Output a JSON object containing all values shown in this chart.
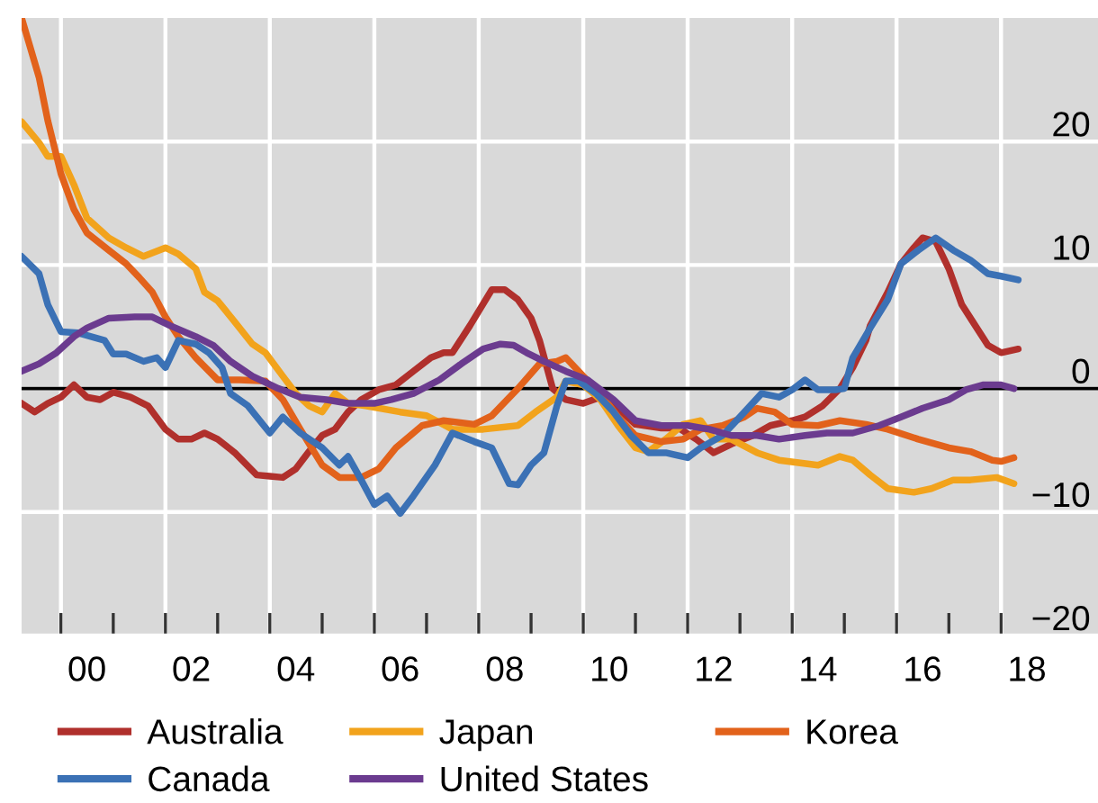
{
  "chart_data": {
    "type": "line",
    "xlim": [
      "1999-04",
      "2019-11-10"
    ],
    "ylim": [
      -20,
      30
    ],
    "xticks": [
      {
        "value": "2000-01",
        "label": null
      },
      {
        "value": "2000-07",
        "label": "00"
      },
      {
        "value": "2001-01",
        "label": null
      },
      {
        "value": "2002-01",
        "label": null
      },
      {
        "value": "2002-07",
        "label": "02"
      },
      {
        "value": "2003-01",
        "label": null
      },
      {
        "value": "2004-01",
        "label": null
      },
      {
        "value": "2004-07",
        "label": "04"
      },
      {
        "value": "2005-01",
        "label": null
      },
      {
        "value": "2006-01",
        "label": null
      },
      {
        "value": "2006-07",
        "label": "06"
      },
      {
        "value": "2007-01",
        "label": null
      },
      {
        "value": "2008-01",
        "label": null
      },
      {
        "value": "2008-07",
        "label": "08"
      },
      {
        "value": "2009-01",
        "label": null
      },
      {
        "value": "2010-01",
        "label": null
      },
      {
        "value": "2010-07",
        "label": "10"
      },
      {
        "value": "2011-01",
        "label": null
      },
      {
        "value": "2012-01",
        "label": null
      },
      {
        "value": "2012-07",
        "label": "12"
      },
      {
        "value": "2013-01",
        "label": null
      },
      {
        "value": "2014-01",
        "label": null
      },
      {
        "value": "2014-07",
        "label": "14"
      },
      {
        "value": "2015-01",
        "label": null
      },
      {
        "value": "2016-01",
        "label": null
      },
      {
        "value": "2016-07",
        "label": "16"
      },
      {
        "value": "2017-01",
        "label": null
      },
      {
        "value": "2018-01",
        "label": null
      },
      {
        "value": "2018-07",
        "label": "18"
      }
    ],
    "yticks": [
      -20,
      -10,
      0,
      10,
      20
    ],
    "grid": true,
    "legend": "bottom",
    "ref_lines": [
      {
        "axis": "y",
        "value": 0,
        "color": "#000000"
      }
    ],
    "series": [
      {
        "name": "Australia",
        "color": "#b0302c",
        "x": [
          "1999-04",
          "1999-07",
          "1999-10",
          "2000-01",
          "2000-04",
          "2000-07",
          "2000-10",
          "2001-01",
          "2001-05",
          "2001-09",
          "2002-01",
          "2002-04",
          "2002-07",
          "2002-10",
          "2003-01",
          "2003-05",
          "2003-10",
          "2004-01",
          "2004-04",
          "2004-07",
          "2004-10",
          "2005-01",
          "2005-04",
          "2005-07",
          "2005-10",
          "2006-02",
          "2006-06",
          "2006-10",
          "2007-02",
          "2007-05",
          "2007-07",
          "2007-11",
          "2008-04",
          "2008-07",
          "2008-10",
          "2009-01",
          "2009-03",
          "2009-06",
          "2009-09",
          "2010-01",
          "2010-05",
          "2010-09",
          "2011-01",
          "2011-07",
          "2011-11",
          "2012-03",
          "2012-07",
          "2012-11",
          "2013-04",
          "2013-08",
          "2014-01",
          "2014-04",
          "2014-08",
          "2014-12",
          "2015-03",
          "2015-06",
          "2015-07",
          "2015-11",
          "2016-02",
          "2016-05",
          "2016-07",
          "2016-10",
          "2017-01",
          "2017-04",
          "2017-06",
          "2017-10",
          "2018-01",
          "2018-05"
        ],
        "values": [
          -1.2,
          -1.9,
          -1.2,
          -0.7,
          0.3,
          -0.7,
          -0.9,
          -0.3,
          -0.7,
          -1.4,
          -3.3,
          -4.1,
          -4.1,
          -3.6,
          -4.1,
          -5.2,
          -7.0,
          -7.1,
          -7.2,
          -6.5,
          -5.1,
          -3.8,
          -3.3,
          -1.9,
          -0.9,
          -0.1,
          0.3,
          1.4,
          2.5,
          2.9,
          2.9,
          5.1,
          8.0,
          8.0,
          7.2,
          5.7,
          3.9,
          0.0,
          -0.9,
          -1.2,
          -0.7,
          -1.6,
          -2.9,
          -3.2,
          -3.2,
          -4.1,
          -5.2,
          -4.5,
          -3.8,
          -3.0,
          -2.6,
          -2.3,
          -1.4,
          0.0,
          1.7,
          3.9,
          5.1,
          7.8,
          10.1,
          11.4,
          12.2,
          11.9,
          9.7,
          6.8,
          5.7,
          3.5,
          2.9,
          3.2
        ]
      },
      {
        "name": "Japan",
        "color": "#f2a31c",
        "x": [
          "1999-04",
          "1999-08",
          "1999-10",
          "2000-01",
          "2000-04",
          "2000-07",
          "2000-12",
          "2001-04",
          "2001-08",
          "2002-01",
          "2002-04",
          "2002-08",
          "2002-10",
          "2003-01",
          "2003-05",
          "2003-09",
          "2003-12",
          "2004-04",
          "2004-07",
          "2004-10",
          "2005-01",
          "2005-04",
          "2005-07",
          "2005-11",
          "2006-07",
          "2007-01",
          "2007-07",
          "2008-02",
          "2008-10",
          "2009-02",
          "2009-07",
          "2009-09",
          "2010-01",
          "2010-05",
          "2010-09",
          "2011-01",
          "2011-04",
          "2011-08",
          "2011-12",
          "2012-04",
          "2012-07",
          "2012-11",
          "2013-05",
          "2013-10",
          "2014-07",
          "2014-12",
          "2015-03",
          "2015-07",
          "2015-11",
          "2016-05",
          "2016-09",
          "2017-02",
          "2017-06",
          "2017-12",
          "2018-04"
        ],
        "values": [
          21.6,
          19.9,
          18.8,
          18.8,
          16.5,
          13.8,
          12.2,
          11.4,
          10.7,
          11.4,
          10.9,
          9.7,
          7.8,
          7.1,
          5.4,
          3.6,
          2.9,
          1.0,
          -0.4,
          -1.4,
          -1.9,
          -0.4,
          -1.2,
          -1.4,
          -1.9,
          -2.2,
          -3.3,
          -3.3,
          -3.0,
          -1.9,
          -0.7,
          0.6,
          0.3,
          -0.9,
          -3.0,
          -4.8,
          -5.1,
          -4.1,
          -2.9,
          -2.6,
          -4.1,
          -4.1,
          -5.2,
          -5.8,
          -6.2,
          -5.5,
          -5.8,
          -7.0,
          -8.1,
          -8.4,
          -8.1,
          -7.4,
          -7.4,
          -7.2,
          -7.7
        ]
      },
      {
        "name": "Korea",
        "color": "#e2621b",
        "x": [
          "1999-04",
          "1999-08",
          "1999-10",
          "2000-01",
          "2000-04",
          "2000-07",
          "2000-12",
          "2001-04",
          "2001-07",
          "2001-10",
          "2002-01",
          "2002-04",
          "2002-08",
          "2003-01",
          "2003-06",
          "2003-12",
          "2004-04",
          "2004-08",
          "2005-01",
          "2005-05",
          "2005-10",
          "2006-02",
          "2006-06",
          "2006-12",
          "2007-05",
          "2007-12",
          "2008-04",
          "2008-10",
          "2009-03",
          "2009-07",
          "2009-09",
          "2010-01",
          "2010-05",
          "2010-09",
          "2011-01",
          "2011-07",
          "2011-12",
          "2012-04",
          "2012-09",
          "2013-02",
          "2013-05",
          "2013-09",
          "2014-01",
          "2014-07",
          "2014-12",
          "2015-06",
          "2015-11",
          "2016-06",
          "2017-01",
          "2017-06",
          "2017-11",
          "2018-01",
          "2018-04"
        ],
        "values": [
          30.0,
          25.2,
          21.7,
          17.4,
          14.5,
          12.6,
          11.2,
          10.1,
          9.0,
          7.8,
          5.8,
          4.2,
          2.5,
          0.7,
          0.7,
          0.6,
          -0.9,
          -3.3,
          -6.2,
          -7.2,
          -7.2,
          -6.5,
          -4.8,
          -3.0,
          -2.6,
          -2.9,
          -2.2,
          0.0,
          2.0,
          2.2,
          2.5,
          1.0,
          -0.4,
          -2.3,
          -3.8,
          -4.3,
          -4.1,
          -3.3,
          -3.0,
          -2.3,
          -1.6,
          -1.9,
          -2.9,
          -3.0,
          -2.6,
          -2.9,
          -3.3,
          -4.1,
          -4.8,
          -5.1,
          -5.8,
          -5.9,
          -5.6
        ]
      },
      {
        "name": "Canada",
        "color": "#3b71b5",
        "x": [
          "1999-04",
          "1999-08",
          "1999-10",
          "2000-01",
          "2000-05",
          "2000-11",
          "2001-01",
          "2001-04",
          "2001-08",
          "2001-11",
          "2002-01",
          "2002-04",
          "2002-08",
          "2002-11",
          "2003-02",
          "2003-04",
          "2003-08",
          "2004-01",
          "2004-04",
          "2004-08",
          "2005-01",
          "2005-05",
          "2005-07",
          "2005-10",
          "2006-01",
          "2006-04",
          "2006-07",
          "2006-10",
          "2007-03",
          "2007-07",
          "2007-12",
          "2008-04",
          "2008-08",
          "2008-10",
          "2009-01",
          "2009-04",
          "2009-07",
          "2009-09",
          "2009-12",
          "2010-04",
          "2010-08",
          "2010-12",
          "2011-04",
          "2011-08",
          "2012-01",
          "2012-04",
          "2012-09",
          "2013-01",
          "2013-06",
          "2013-10",
          "2014-01",
          "2014-04",
          "2014-07",
          "2014-11",
          "2015-01",
          "2015-03",
          "2015-07",
          "2015-11",
          "2016-02",
          "2016-06",
          "2016-10",
          "2017-02",
          "2017-06",
          "2017-10",
          "2018-01",
          "2018-05"
        ],
        "values": [
          10.7,
          9.3,
          6.8,
          4.6,
          4.5,
          3.9,
          2.8,
          2.8,
          2.2,
          2.5,
          1.7,
          3.9,
          3.6,
          2.9,
          1.7,
          -0.4,
          -1.4,
          -3.6,
          -2.3,
          -3.6,
          -4.8,
          -6.2,
          -5.5,
          -7.4,
          -9.4,
          -8.7,
          -10.1,
          -8.7,
          -6.2,
          -3.6,
          -4.3,
          -4.8,
          -7.7,
          -7.8,
          -6.2,
          -5.2,
          -1.4,
          0.6,
          0.6,
          -0.4,
          -1.9,
          -3.8,
          -5.2,
          -5.2,
          -5.6,
          -4.8,
          -3.8,
          -2.3,
          -0.4,
          -0.7,
          -0.1,
          0.7,
          -0.1,
          -0.1,
          0.0,
          2.5,
          4.9,
          7.2,
          10.1,
          11.2,
          12.2,
          11.2,
          10.4,
          9.3,
          9.1,
          8.8
        ]
      },
      {
        "name": "United States",
        "color": "#6b3b8f",
        "x": [
          "1999-04",
          "1999-08",
          "1999-12",
          "2000-04",
          "2000-07",
          "2000-12",
          "2001-06",
          "2001-10",
          "2002-02",
          "2002-08",
          "2002-12",
          "2003-04",
          "2003-09",
          "2004-03",
          "2004-08",
          "2005-02",
          "2005-07",
          "2006-01",
          "2006-05",
          "2006-10",
          "2007-04",
          "2007-09",
          "2008-02",
          "2008-06",
          "2008-09",
          "2008-12",
          "2009-04",
          "2009-09",
          "2010-02",
          "2010-08",
          "2011-01",
          "2011-07",
          "2012-01",
          "2012-06",
          "2012-11",
          "2013-05",
          "2013-10",
          "2014-04",
          "2014-09",
          "2015-03",
          "2015-09",
          "2016-02",
          "2016-07",
          "2017-01",
          "2017-05",
          "2017-09",
          "2018-01",
          "2018-04"
        ],
        "values": [
          1.4,
          2.0,
          2.9,
          4.2,
          4.9,
          5.7,
          5.8,
          5.8,
          5.1,
          4.2,
          3.5,
          2.2,
          1.0,
          0.0,
          -0.7,
          -0.9,
          -1.2,
          -1.2,
          -0.9,
          -0.4,
          0.7,
          2.0,
          3.2,
          3.6,
          3.5,
          2.9,
          2.2,
          1.4,
          0.7,
          -0.9,
          -2.6,
          -3.0,
          -3.0,
          -3.3,
          -3.8,
          -3.8,
          -4.1,
          -3.8,
          -3.6,
          -3.6,
          -3.0,
          -2.3,
          -1.6,
          -0.9,
          -0.1,
          0.3,
          0.3,
          0.0
        ]
      }
    ]
  }
}
